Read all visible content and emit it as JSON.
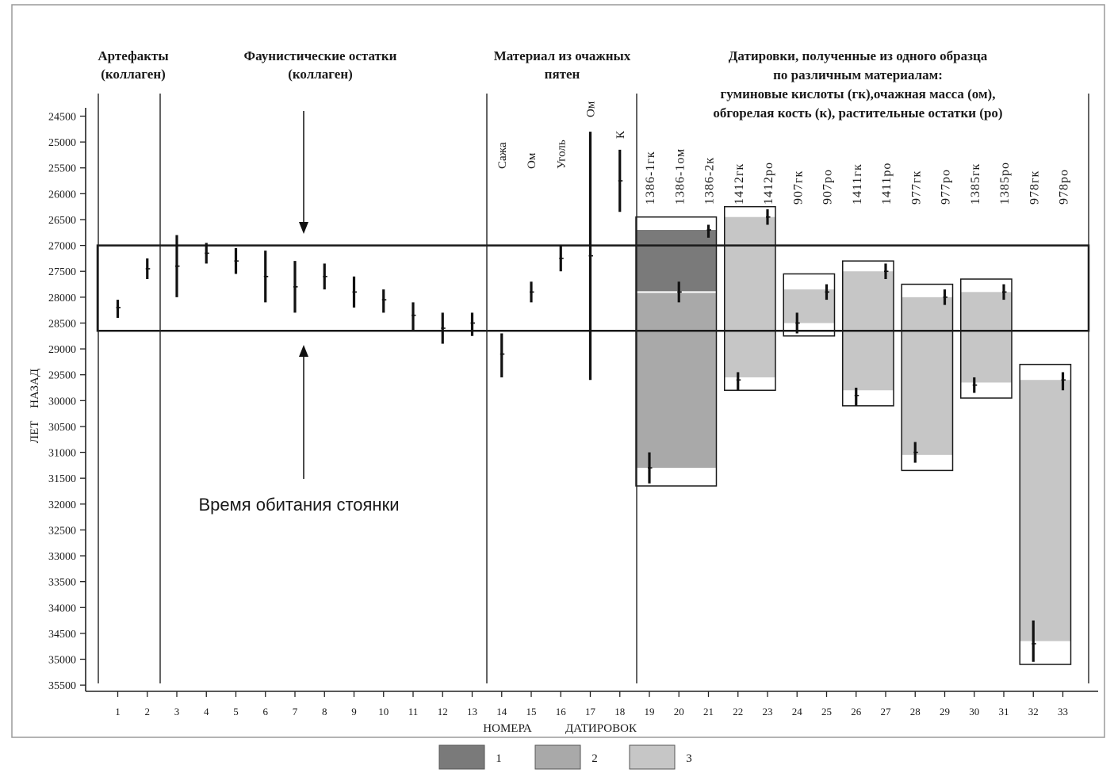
{
  "chart_data": {
    "type": "range",
    "ylabel": "ЛЕТ НАЗАД",
    "xlabel_parts": [
      "НОМЕРА",
      "ДАТИРОВОК"
    ],
    "ylim": [
      24300,
      35600
    ],
    "y_inverted": true,
    "y_ticks": [
      24500,
      25000,
      25500,
      26000,
      26500,
      27000,
      27500,
      28000,
      28500,
      29000,
      29500,
      30000,
      30500,
      31000,
      31500,
      32000,
      32500,
      33000,
      33500,
      34000,
      34500,
      35000,
      35500
    ],
    "x_ticks": [
      1,
      2,
      3,
      4,
      5,
      6,
      7,
      8,
      9,
      10,
      11,
      12,
      13,
      14,
      15,
      16,
      17,
      18,
      19,
      20,
      21,
      22,
      23,
      24,
      25,
      26,
      27,
      28,
      29,
      30,
      31,
      32,
      33
    ],
    "section_headers": [
      {
        "id": "artifacts",
        "lines": [
          "Артефакты",
          "(коллаген)"
        ]
      },
      {
        "id": "fauna",
        "lines": [
          "Фаунистические остатки",
          "(коллаген)"
        ]
      },
      {
        "id": "hearth",
        "lines": [
          "Материал из очажных",
          "пятен"
        ]
      },
      {
        "id": "single",
        "lines": [
          "Датировки, полученные из одного образца",
          "по различным материалам:",
          "гуминовые кислоты (гк),очажная масса (ом),",
          "обгорелая кость (к), растительные остатки (ро)"
        ]
      }
    ],
    "hearth_labels": [
      {
        "x": 14,
        "text": "Сажа"
      },
      {
        "x": 15,
        "text": "Ом"
      },
      {
        "x": 16,
        "text": "Уголь"
      },
      {
        "x": 17,
        "text": "Ом"
      },
      {
        "x": 18,
        "text": "К"
      }
    ],
    "sample_labels": [
      {
        "x": 19,
        "text": "1386-1гк"
      },
      {
        "x": 20,
        "text": "1386-1ом"
      },
      {
        "x": 21,
        "text": "1386-2к"
      },
      {
        "x": 22,
        "text": "1412гк"
      },
      {
        "x": 23,
        "text": "1412ро"
      },
      {
        "x": 24,
        "text": "907гк"
      },
      {
        "x": 25,
        "text": "907ро"
      },
      {
        "x": 26,
        "text": "1411гк"
      },
      {
        "x": 27,
        "text": "1411ро"
      },
      {
        "x": 28,
        "text": "977гк"
      },
      {
        "x": 29,
        "text": "977ро"
      },
      {
        "x": 30,
        "text": "1385гк"
      },
      {
        "x": 31,
        "text": "1385ро"
      },
      {
        "x": 32,
        "text": "978гк"
      },
      {
        "x": 33,
        "text": "978ро"
      }
    ],
    "dates": [
      {
        "x": 1,
        "value": 28200,
        "low": 28050,
        "high": 28400
      },
      {
        "x": 2,
        "value": 27450,
        "low": 27250,
        "high": 27650
      },
      {
        "x": 3,
        "value": 27400,
        "low": 26800,
        "high": 28000
      },
      {
        "x": 4,
        "value": 27150,
        "low": 26950,
        "high": 27350
      },
      {
        "x": 5,
        "value": 27300,
        "low": 27050,
        "high": 27550
      },
      {
        "x": 6,
        "value": 27600,
        "low": 27100,
        "high": 28100
      },
      {
        "x": 7,
        "value": 27800,
        "low": 27300,
        "high": 28300
      },
      {
        "x": 8,
        "value": 27600,
        "low": 27350,
        "high": 27850
      },
      {
        "x": 9,
        "value": 27900,
        "low": 27600,
        "high": 28200
      },
      {
        "x": 10,
        "value": 28050,
        "low": 27850,
        "high": 28300
      },
      {
        "x": 11,
        "value": 28350,
        "low": 28100,
        "high": 28650
      },
      {
        "x": 12,
        "value": 28600,
        "low": 28300,
        "high": 28900
      },
      {
        "x": 13,
        "value": 28500,
        "low": 28300,
        "high": 28750
      },
      {
        "x": 14,
        "value": 29100,
        "low": 28700,
        "high": 29550
      },
      {
        "x": 15,
        "value": 27900,
        "low": 27700,
        "high": 28100
      },
      {
        "x": 16,
        "value": 27250,
        "low": 27000,
        "high": 27500
      },
      {
        "x": 17,
        "value": 27200,
        "low": 24800,
        "high": 29600
      },
      {
        "x": 18,
        "value": 25750,
        "low": 25150,
        "high": 26350
      },
      {
        "x": 19,
        "value": 31300,
        "low": 31000,
        "high": 31600
      },
      {
        "x": 20,
        "value": 27900,
        "low": 27700,
        "high": 28100
      },
      {
        "x": 21,
        "value": 26700,
        "low": 26600,
        "high": 26850
      },
      {
        "x": 22,
        "value": 29600,
        "low": 29450,
        "high": 29800
      },
      {
        "x": 23,
        "value": 26450,
        "low": 26300,
        "high": 26600
      },
      {
        "x": 24,
        "value": 28500,
        "low": 28300,
        "high": 28700
      },
      {
        "x": 25,
        "value": 27900,
        "low": 27750,
        "high": 28050
      },
      {
        "x": 26,
        "value": 29900,
        "low": 29750,
        "high": 30100
      },
      {
        "x": 27,
        "value": 27500,
        "low": 27350,
        "high": 27650
      },
      {
        "x": 28,
        "value": 31000,
        "low": 30800,
        "high": 31200
      },
      {
        "x": 29,
        "value": 28000,
        "low": 27850,
        "high": 28150
      },
      {
        "x": 30,
        "value": 29700,
        "low": 29550,
        "high": 29850
      },
      {
        "x": 31,
        "value": 27900,
        "low": 27750,
        "high": 28050
      },
      {
        "x": 32,
        "value": 34700,
        "low": 34250,
        "high": 35050
      },
      {
        "x": 33,
        "value": 29600,
        "low": 29450,
        "high": 29800
      }
    ],
    "habitation_band": {
      "from": 27000,
      "to": 28650,
      "label": "Время обитания стоянки"
    },
    "groups": [
      {
        "x_from": 19,
        "x_to": 21,
        "box_from": 26450,
        "box_to": 31650,
        "fills": [
          {
            "kind": 1,
            "from": 26700,
            "to": 27900
          },
          {
            "kind": 2,
            "from": 27900,
            "to": 31300
          }
        ]
      },
      {
        "x_from": 22,
        "x_to": 23,
        "box_from": 26250,
        "box_to": 29800,
        "fills": [
          {
            "kind": 3,
            "from": 26450,
            "to": 29550
          }
        ]
      },
      {
        "x_from": 24,
        "x_to": 25,
        "box_from": 27550,
        "box_to": 28750,
        "fills": [
          {
            "kind": 3,
            "from": 27850,
            "to": 28500
          }
        ]
      },
      {
        "x_from": 26,
        "x_to": 27,
        "box_from": 27300,
        "box_to": 30100,
        "fills": [
          {
            "kind": 3,
            "from": 27500,
            "to": 29800
          }
        ]
      },
      {
        "x_from": 28,
        "x_to": 29,
        "box_from": 27750,
        "box_to": 31350,
        "fills": [
          {
            "kind": 3,
            "from": 28000,
            "to": 31050
          }
        ]
      },
      {
        "x_from": 30,
        "x_to": 31,
        "box_from": 27650,
        "box_to": 29950,
        "fills": [
          {
            "kind": 3,
            "from": 27900,
            "to": 29650
          }
        ]
      },
      {
        "x_from": 32,
        "x_to": 33,
        "box_from": 29300,
        "box_to": 35100,
        "fills": [
          {
            "kind": 3,
            "from": 29600,
            "to": 34650
          }
        ]
      }
    ],
    "legend": [
      {
        "kind": 1,
        "label": "1",
        "color": "#7a7a7a"
      },
      {
        "kind": 2,
        "label": "2",
        "color": "#a9a9a9"
      },
      {
        "kind": 3,
        "label": "3",
        "color": "#c6c6c6"
      }
    ],
    "grid": false
  }
}
